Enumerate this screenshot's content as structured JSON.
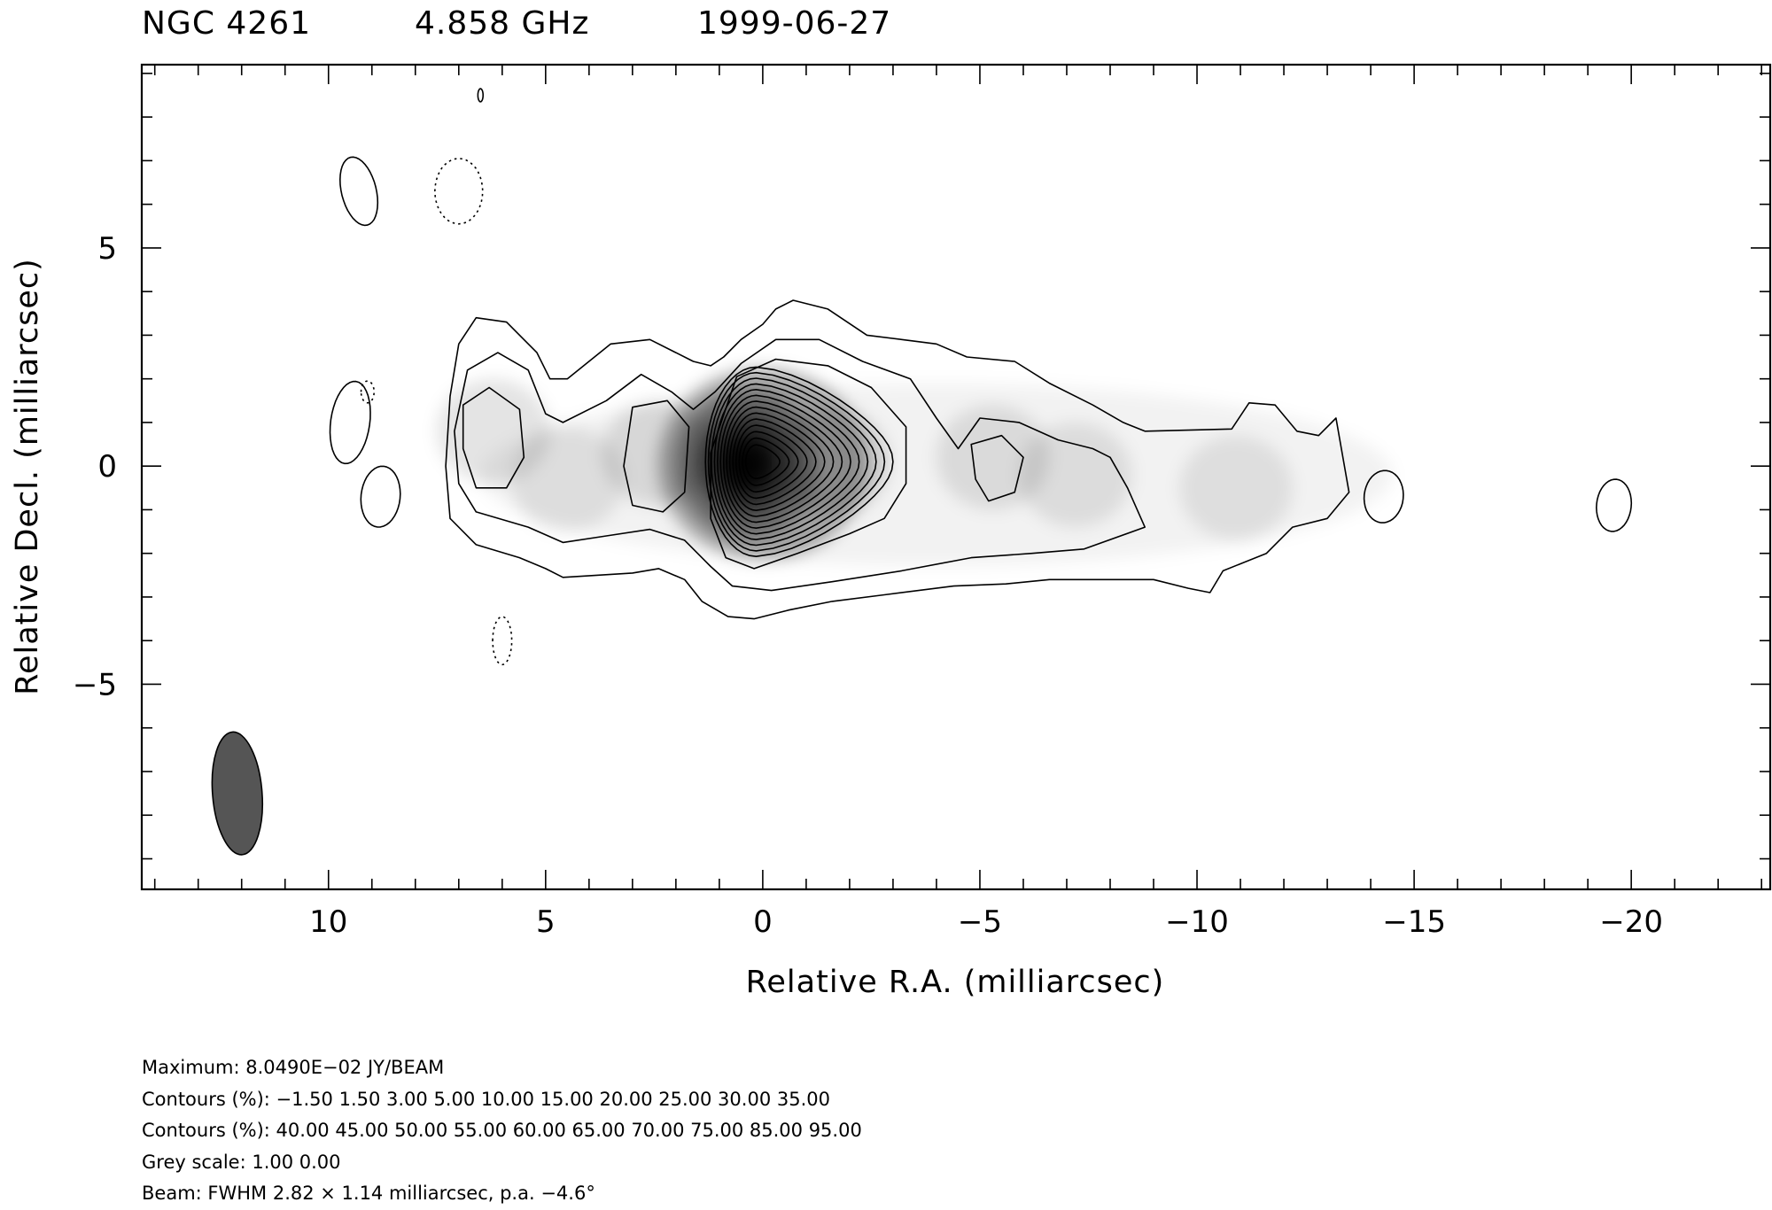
{
  "header": {
    "source": "NGC 4261",
    "frequency": "4.858 GHz",
    "date": "1999-06-27"
  },
  "chart_data": {
    "type": "contour",
    "xlabel": "Relative R.A. (milliarcsec)",
    "ylabel": "Relative Decl. (milliarcsec)",
    "xlim": [
      14.3,
      -23.2
    ],
    "ylim": [
      -9.7,
      9.2
    ],
    "xticks": [
      10,
      5,
      0,
      -5,
      -10,
      -15,
      -20
    ],
    "xtick_labels": [
      "10",
      "5",
      "0",
      "−5",
      "−10",
      "−15",
      "−20"
    ],
    "yticks": [
      5,
      0,
      -5
    ],
    "ytick_labels": [
      "5",
      "0",
      "−5"
    ],
    "peak": {
      "x": 0,
      "y": 0
    },
    "beam": {
      "x": 12.1,
      "y": -7.5,
      "major_fwhm": 2.82,
      "minor_fwhm": 1.14,
      "pa_deg": -4.6,
      "color": "#555555"
    },
    "components": [
      {
        "x": 0.0,
        "y": 0.05,
        "peak_pct": 100
      },
      {
        "x": -1.6,
        "y": 0.1,
        "peak_pct": 30
      },
      {
        "x": 2.4,
        "y": 0.3,
        "peak_pct": 14
      },
      {
        "x": 6.2,
        "y": 0.8,
        "peak_pct": 10
      },
      {
        "x": 4.5,
        "y": -0.3,
        "peak_pct": 5
      },
      {
        "x": -5.3,
        "y": 0.2,
        "peak_pct": 9
      },
      {
        "x": -7.2,
        "y": -0.2,
        "peak_pct": 6
      },
      {
        "x": -10.9,
        "y": -0.5,
        "peak_pct": 3
      }
    ],
    "contour_levels_pct": [
      -1.5,
      1.5,
      3,
      5,
      10,
      15,
      20,
      25,
      30,
      35,
      40,
      45,
      50,
      55,
      60,
      65,
      70,
      75,
      85,
      95
    ],
    "isolated_contours": [
      {
        "x": 9.5,
        "y": 1.0,
        "level_pct": 1.5
      },
      {
        "x": 8.8,
        "y": -0.7,
        "level_pct": 1.5
      },
      {
        "x": 9.3,
        "y": 6.3,
        "level_pct": 1.5
      },
      {
        "x": -14.3,
        "y": -0.7,
        "level_pct": 1.5
      },
      {
        "x": -19.6,
        "y": -0.9,
        "level_pct": 1.5
      },
      {
        "x": 6.5,
        "y": 8.5,
        "level_pct": 1.5
      },
      {
        "x": 7.0,
        "y": 6.3,
        "level_pct": -1.5
      },
      {
        "x": 9.1,
        "y": 1.7,
        "level_pct": -1.5
      },
      {
        "x": 6.0,
        "y": -4.0,
        "level_pct": -1.5
      }
    ]
  },
  "notes": {
    "maximum": "Maximum: 8.0490E−02 JY/BEAM",
    "contours1": "Contours (%): −1.50 1.50 3.00 5.00 10.00 15.00 20.00 25.00 30.00 35.00",
    "contours2": "Contours (%): 40.00 45.00 50.00 55.00 60.00 65.00 70.00 75.00 85.00 95.00",
    "greyscale": "Grey scale: 1.00 0.00",
    "beam": "Beam: FWHM 2.82 × 1.14 milliarcsec, p.a. −4.6°"
  }
}
